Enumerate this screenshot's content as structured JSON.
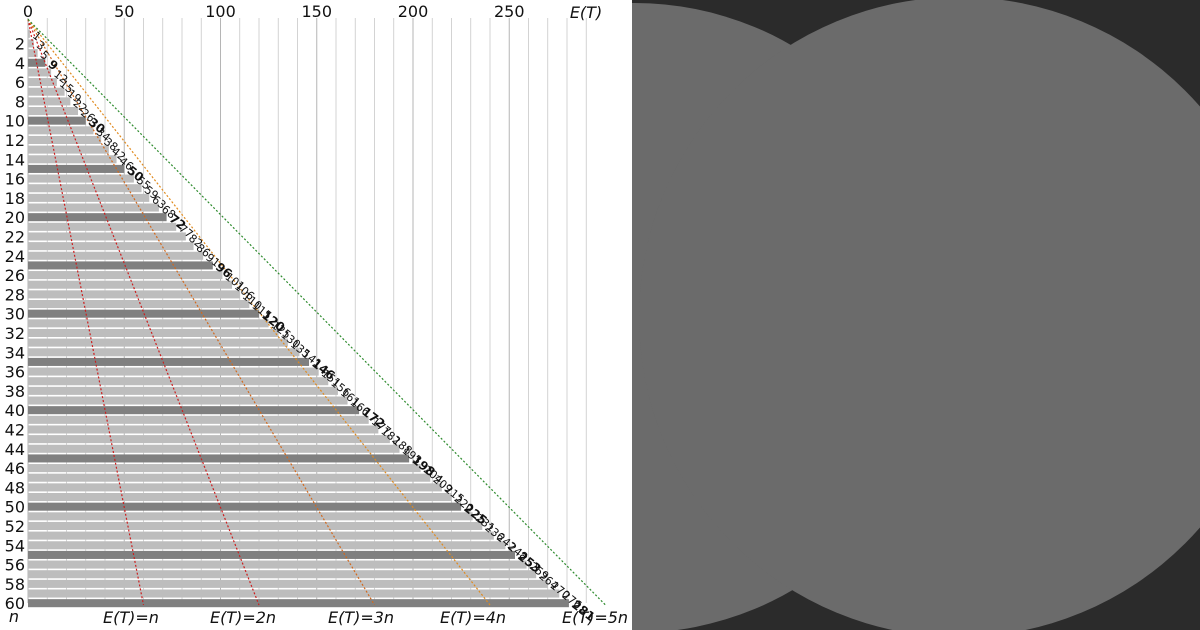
{
  "chart_data": {
    "type": "bar",
    "orientation": "horizontal",
    "x_axis": {
      "label": "E(T)",
      "ticks": [
        0,
        50,
        100,
        150,
        200,
        250
      ],
      "range": [
        0,
        300
      ]
    },
    "y_axis": {
      "label": "n",
      "ticks": [
        2,
        4,
        6,
        8,
        10,
        12,
        14,
        16,
        18,
        20,
        22,
        24,
        26,
        28,
        30,
        32,
        34,
        36,
        38,
        40,
        42,
        44,
        46,
        48,
        50,
        52,
        54,
        56,
        58,
        60
      ]
    },
    "n": [
      1,
      2,
      3,
      4,
      5,
      6,
      7,
      8,
      9,
      10,
      11,
      12,
      13,
      14,
      15,
      16,
      17,
      18,
      19,
      20,
      21,
      22,
      23,
      24,
      25,
      26,
      27,
      28,
      29,
      30,
      31,
      32,
      33,
      34,
      35,
      36,
      37,
      38,
      39,
      40,
      41,
      42,
      43,
      44,
      45,
      46,
      47,
      48,
      49,
      50,
      51,
      52,
      53,
      54,
      55,
      56,
      57,
      58,
      59,
      60
    ],
    "values": [
      1,
      3,
      5,
      9,
      12,
      15,
      19,
      22,
      26,
      30,
      34,
      38,
      42,
      46,
      50,
      55,
      59,
      63,
      68,
      72,
      77,
      82,
      86,
      91,
      96,
      101,
      106,
      110,
      115,
      120,
      125,
      130,
      135,
      141,
      146,
      151,
      156,
      161,
      166,
      172,
      177,
      182,
      188,
      193,
      198,
      204,
      209,
      215,
      220,
      225,
      231,
      236,
      242,
      248,
      253,
      259,
      264,
      270,
      276,
      281
    ],
    "highlighted_n": [
      4,
      10,
      15,
      20,
      25,
      30,
      35,
      40,
      45,
      50,
      55,
      60
    ],
    "reference_lines": [
      {
        "label": "E(T)=n",
        "slope": 1,
        "color": "#cc1e1e"
      },
      {
        "label": "E(T)=2n",
        "slope": 2,
        "color": "#cc1e1e"
      },
      {
        "label": "E(T)=3n",
        "slope": 3,
        "color": "#d2691e"
      },
      {
        "label": "E(T)=4n",
        "slope": 4,
        "color": "#e08a1e"
      },
      {
        "label": "E(T)=5n",
        "slope": 5,
        "color": "#2e8b2e"
      }
    ],
    "colors": {
      "bar": "#bdbdbd",
      "bar_highlight": "#808080",
      "grid": "#c8c8c8"
    }
  }
}
